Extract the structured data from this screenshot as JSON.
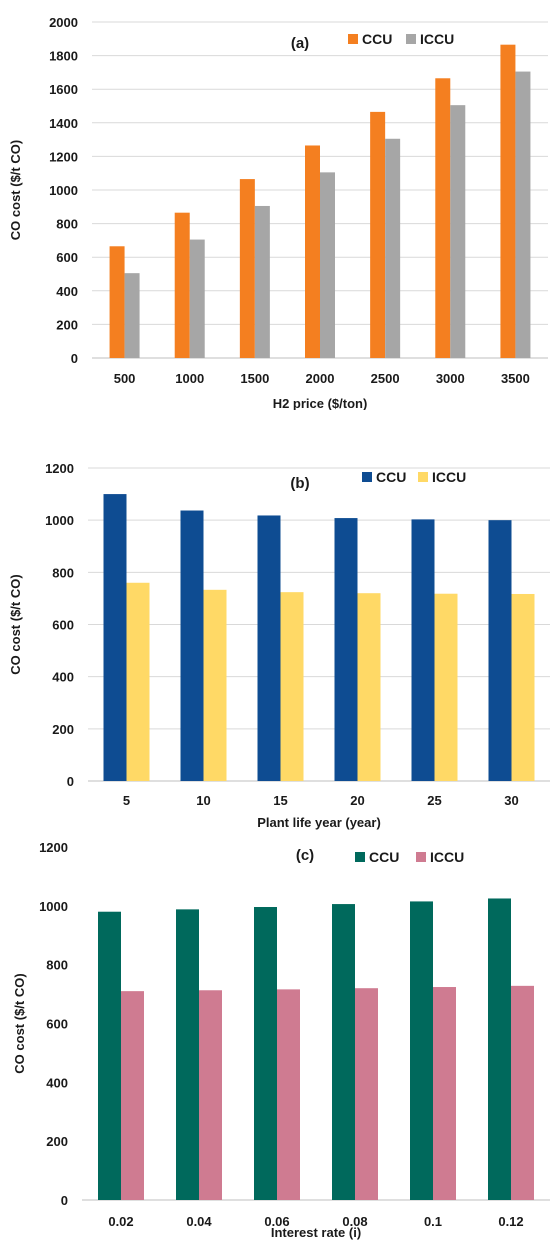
{
  "chart_data": [
    {
      "type": "bar",
      "panel_label": "(a)",
      "categories": [
        "500",
        "1000",
        "1500",
        "2000",
        "2500",
        "3000",
        "3500"
      ],
      "series": [
        {
          "name": "CCU",
          "values": [
            665,
            865,
            1065,
            1265,
            1465,
            1665,
            1865
          ],
          "color": "#f47f20"
        },
        {
          "name": "ICCU",
          "values": [
            505,
            705,
            905,
            1105,
            1305,
            1505,
            1705
          ],
          "color": "#a6a6a6"
        }
      ],
      "xlabel": "H2 price ($/ton)",
      "ylabel": "CO cost ($/t CO)",
      "ylim": [
        0,
        2000
      ],
      "yticks": [
        "0",
        "200",
        "400",
        "600",
        "800",
        "1000",
        "1200",
        "1400",
        "1600",
        "1800",
        "2000"
      ],
      "grid": true,
      "legend": "top-right"
    },
    {
      "type": "bar",
      "panel_label": "(b)",
      "categories": [
        "5",
        "10",
        "15",
        "20",
        "25",
        "30"
      ],
      "series": [
        {
          "name": "CCU",
          "values": [
            1100,
            1037,
            1018,
            1008,
            1003,
            1000
          ],
          "color": "#0e4c92"
        },
        {
          "name": "ICCU",
          "values": [
            760,
            733,
            724,
            720,
            718,
            717
          ],
          "color": "#ffd966"
        }
      ],
      "xlabel": "Plant life year (year)",
      "ylabel": "CO cost ($/t CO)",
      "ylim": [
        0,
        1200
      ],
      "yticks": [
        "0",
        "200",
        "400",
        "600",
        "800",
        "1000",
        "1200"
      ],
      "grid": true,
      "legend": "top-right"
    },
    {
      "type": "bar",
      "panel_label": "(c)",
      "categories": [
        "0.02",
        "0.04",
        "0.06",
        "0.08",
        "0.1",
        "0.12"
      ],
      "series": [
        {
          "name": "CCU",
          "values": [
            980,
            988,
            996,
            1006,
            1015,
            1025
          ],
          "color": "#00695c"
        },
        {
          "name": "ICCU",
          "values": [
            710,
            713,
            716,
            720,
            724,
            728
          ],
          "color": "#cf7b91"
        }
      ],
      "xlabel": "Interest rate (i)",
      "ylabel": "CO cost ($/t CO)",
      "ylim": [
        0,
        1200
      ],
      "yticks": [
        "0",
        "200",
        "400",
        "600",
        "800",
        "1000",
        "1200"
      ],
      "grid": false,
      "legend": "top-right"
    }
  ]
}
